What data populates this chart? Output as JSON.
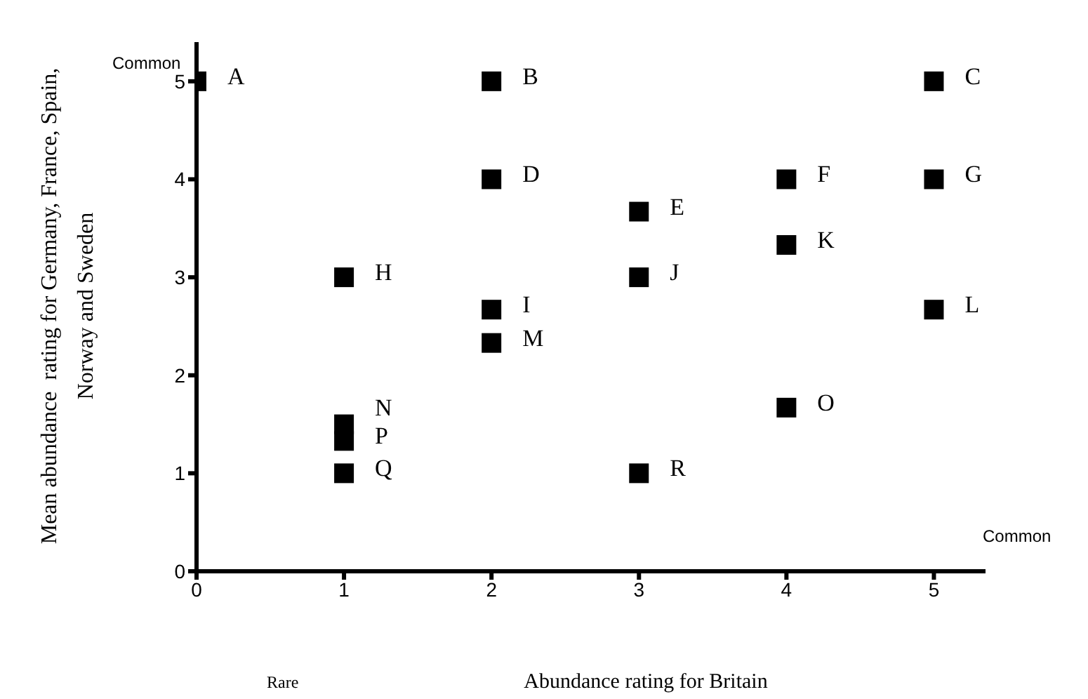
{
  "chart_data": {
    "type": "scatter",
    "xlabel": "Abundance rating for Britain",
    "ylabel": "Mean abundance  rating for Germany, France, Spain,\nNorway and Sweden",
    "x": [
      0,
      2,
      5,
      2,
      3,
      4,
      5,
      1,
      2,
      3,
      4,
      5,
      2,
      1,
      1,
      1,
      4,
      3
    ],
    "values": [
      5,
      5,
      5,
      4,
      3.67,
      4,
      4,
      3,
      2.67,
      3,
      3.33,
      2.67,
      2.33,
      1.5,
      1.33,
      1,
      1.67,
      1
    ],
    "color": "#000000",
    "marker": "square",
    "xlim": [
      0,
      5.35
    ],
    "xticks": [
      0,
      1,
      2,
      3,
      4,
      5
    ],
    "ylim": [
      0,
      5.4
    ],
    "yticks": [
      0,
      1,
      2,
      3,
      4,
      5
    ],
    "grid": false,
    "legend": false,
    "annotations": [
      "Common",
      "Common",
      "Rare",
      {
        "text": "A",
        "x": 0,
        "y": 5
      },
      {
        "text": "B",
        "x": 2,
        "y": 5
      },
      {
        "text": "C",
        "x": 5,
        "y": 5
      },
      {
        "text": "D",
        "x": 2,
        "y": 4
      },
      {
        "text": "E",
        "x": 3,
        "y": 3.67
      },
      {
        "text": "F",
        "x": 4,
        "y": 4
      },
      {
        "text": "G",
        "x": 5,
        "y": 4
      },
      {
        "text": "H",
        "x": 1,
        "y": 3
      },
      {
        "text": "I",
        "x": 2,
        "y": 2.67
      },
      {
        "text": "J",
        "x": 3,
        "y": 3
      },
      {
        "text": "K",
        "x": 4,
        "y": 3.33
      },
      {
        "text": "L",
        "x": 5,
        "y": 2.67
      },
      {
        "text": "M",
        "x": 2,
        "y": 2.33
      },
      {
        "text": "N",
        "x": 1,
        "y": 1.5
      },
      {
        "text": "P",
        "x": 1,
        "y": 1.33
      },
      {
        "text": "Q",
        "x": 1,
        "y": 1
      },
      {
        "text": "O",
        "x": 4,
        "y": 1.67
      },
      {
        "text": "R",
        "x": 3,
        "y": 1
      }
    ]
  }
}
